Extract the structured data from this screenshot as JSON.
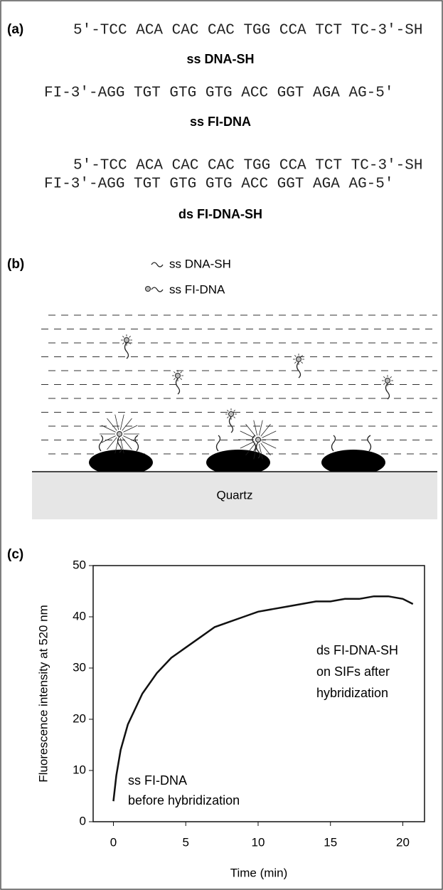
{
  "panel_a": {
    "label": "(a)",
    "strands": [
      {
        "sequence": "5′-TCC ACA CAC CAC TGG CCA TCT TC-3′-SH",
        "name": "ss DNA-SH"
      },
      {
        "sequence": "FI-3′-AGG TGT GTG GTG ACC GGT AGA AG-5′",
        "name": "ss FI-DNA"
      }
    ],
    "duplex": {
      "top": "5′-TCC ACA CAC CAC TGG CCA TCT TC-3′-SH",
      "bottom": "FI-3′-AGG TGT GTG GTG ACC GGT AGA AG-5′",
      "name": "ds FI-DNA-SH"
    }
  },
  "panel_b": {
    "label": "(b)",
    "legend": [
      "ss DNA-SH",
      "ss FI-DNA"
    ],
    "substrate": "Quartz"
  },
  "panel_c": {
    "label": "(c)"
  },
  "chart_data": {
    "type": "line",
    "x_label": "Time (min)",
    "y_label": "Fluorescence intensity at 520 nm",
    "x": [
      0,
      0.2,
      0.5,
      1,
      1.5,
      2,
      3,
      4,
      5,
      6,
      7,
      8,
      9,
      10,
      11,
      12,
      13,
      14,
      15,
      16,
      17,
      18,
      19,
      20,
      20.7
    ],
    "values": [
      4,
      9,
      14,
      19,
      22,
      25,
      29,
      32,
      34,
      36,
      38,
      39,
      40,
      41,
      41.5,
      42,
      42.5,
      43,
      43,
      43.5,
      43.5,
      44,
      44,
      43.5,
      42.5
    ],
    "color": "#111111",
    "xlim": [
      -1.4,
      21.5
    ],
    "ylim": [
      0,
      50
    ],
    "xticks": [
      0,
      5,
      10,
      15,
      20
    ],
    "yticks": [
      0,
      10,
      20,
      30,
      40,
      50
    ],
    "annotations": [
      {
        "lines": [
          "ds FI-DNA-SH",
          "on SIFs after",
          "hybridization"
        ]
      },
      {
        "lines": [
          "ss FI-DNA",
          "before hybridization"
        ]
      }
    ]
  }
}
